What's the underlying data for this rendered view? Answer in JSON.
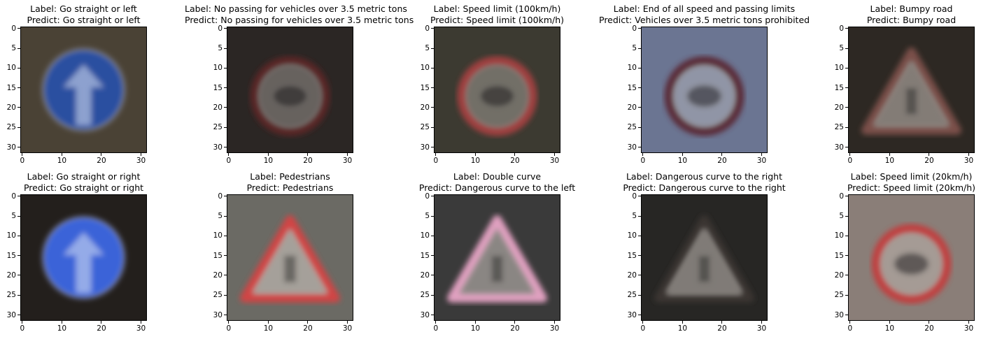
{
  "panels": [
    {
      "label": "Label: Go straight or left",
      "predict": "Predict: Go straight or left",
      "bg": "#4a4235",
      "sign": "blue-circle",
      "tint": "#2a4fa0"
    },
    {
      "label": "Label: No passing for vehicles over 3.5 metric tons",
      "predict": "Predict: No passing for vehicles over 3.5 metric tons",
      "bg": "#2b2624",
      "sign": "red-circle",
      "tint": "#5a2828"
    },
    {
      "label": "Label: Speed limit (100km/h)",
      "predict": "Predict: Speed limit (100km/h)",
      "bg": "#3c3a31",
      "sign": "red-circle",
      "tint": "#a04040"
    },
    {
      "label": "Label: End of all speed and passing limits",
      "predict": "Predict: Vehicles over 3.5 metric tons prohibited",
      "bg": "#6b7592",
      "sign": "red-circle",
      "tint": "#5a2c38"
    },
    {
      "label": "Label: Bumpy road",
      "predict": "Predict: Bumpy road",
      "bg": "#2d2823",
      "sign": "triangle",
      "tint": "#7a5048"
    },
    {
      "label": "Label: Go straight or right",
      "predict": "Predict: Go straight or right",
      "bg": "#231f1c",
      "sign": "blue-circle",
      "tint": "#3a64d8"
    },
    {
      "label": "Label: Pedestrians",
      "predict": "Predict: Pedestrians",
      "bg": "#6b6a64",
      "sign": "triangle",
      "tint": "#d04545"
    },
    {
      "label": "Label: Double curve",
      "predict": "Predict: Dangerous curve to the left",
      "bg": "#3a3a3a",
      "sign": "triangle",
      "tint": "#e0a0c0"
    },
    {
      "label": "Label: Dangerous curve to the right",
      "predict": "Predict: Dangerous curve to the right",
      "bg": "#272624",
      "sign": "triangle",
      "tint": "#3a3630"
    },
    {
      "label": "Label: Speed limit (20km/h)",
      "predict": "Predict: Speed limit (20km/h)",
      "bg": "#8a7e78",
      "sign": "red-circle",
      "tint": "#c04040"
    }
  ],
  "axis": {
    "xticks": [
      "0",
      "10",
      "20",
      "30"
    ],
    "yticks": [
      "0",
      "5",
      "10",
      "15",
      "20",
      "25",
      "30"
    ]
  }
}
